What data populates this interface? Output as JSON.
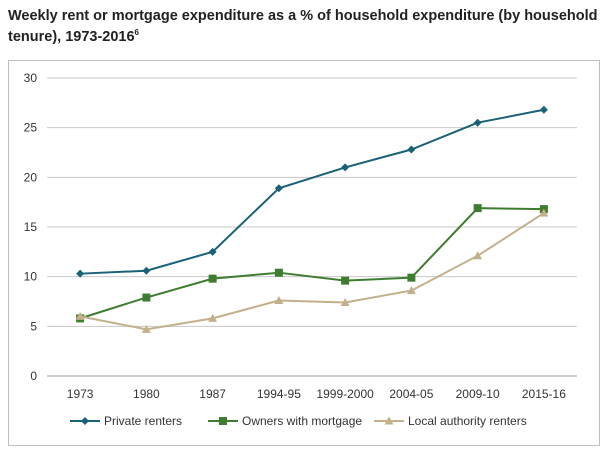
{
  "title": {
    "text": "Weekly rent or mortgage expenditure as a % of household expenditure (by household tenure), 1973-2016",
    "footnote": "6"
  },
  "chart_data": {
    "type": "line",
    "title": "Weekly rent or mortgage expenditure as a % of household expenditure (by household tenure), 1973-2016",
    "categories": [
      "1973",
      "1980",
      "1987",
      "1994-95",
      "1999-2000",
      "2004-05",
      "2009-10",
      "2015-16"
    ],
    "ylim": [
      0,
      30
    ],
    "yticks": [
      0,
      5,
      10,
      15,
      20,
      25,
      30
    ],
    "grid": true,
    "legend": "bottom",
    "series": [
      {
        "name": "Private renters",
        "color": "#1a6277",
        "marker": "diamond",
        "values": [
          10.3,
          10.6,
          12.5,
          18.9,
          21.0,
          22.8,
          25.5,
          26.8
        ]
      },
      {
        "name": "Owners with mortgage",
        "color": "#3e7d2f",
        "marker": "square",
        "values": [
          5.8,
          7.9,
          9.8,
          10.4,
          9.6,
          9.9,
          16.9,
          16.8
        ]
      },
      {
        "name": "Local authority renters",
        "color": "#c4b08a",
        "marker": "triangle",
        "values": [
          6.0,
          4.7,
          5.8,
          7.6,
          7.4,
          8.6,
          12.1,
          16.4
        ]
      }
    ]
  }
}
